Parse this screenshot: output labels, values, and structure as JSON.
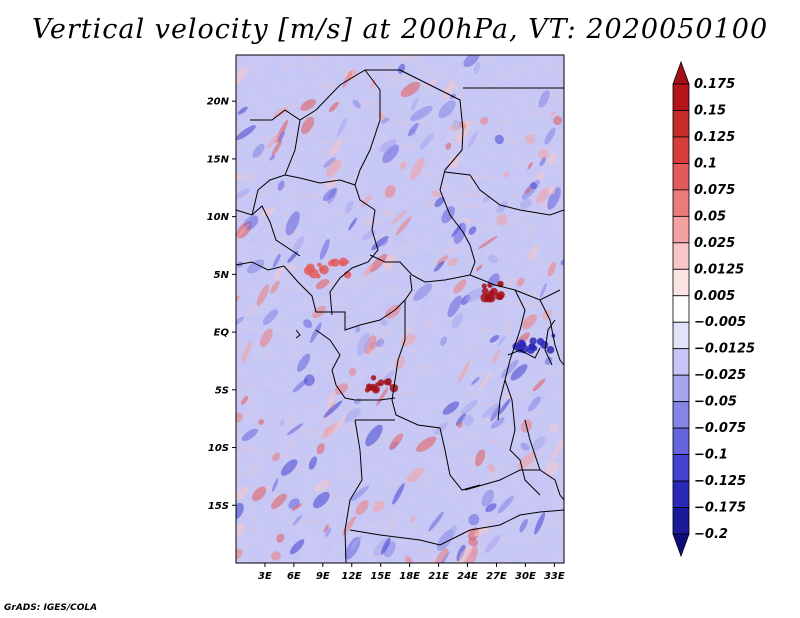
{
  "chart_data": {
    "type": "heatmap",
    "title": "Vertical velocity [m/s] at 200hPa, VT: 2020050100",
    "variable": "Vertical velocity",
    "units": "m/s",
    "level": "200hPa",
    "valid_time": "2020050100",
    "x_axis": {
      "range_deg_east": [
        0,
        34
      ],
      "ticks": [
        3,
        6,
        9,
        12,
        15,
        18,
        21,
        24,
        27,
        30,
        33
      ],
      "tick_labels": [
        "3E",
        "6E",
        "9E",
        "12E",
        "15E",
        "18E",
        "21E",
        "24E",
        "27E",
        "30E",
        "33E"
      ]
    },
    "y_axis": {
      "range_deg_north": [
        -20,
        24
      ],
      "ticks": [
        20,
        15,
        10,
        5,
        0,
        -5,
        -10,
        -15
      ],
      "tick_labels": [
        "20N",
        "15N",
        "10N",
        "5N",
        "EQ",
        "5S",
        "10S",
        "15S"
      ]
    },
    "colorbar": {
      "levels": [
        0.175,
        0.15,
        0.125,
        0.1,
        0.075,
        0.05,
        0.025,
        0.0125,
        0.005,
        -0.005,
        -0.0125,
        -0.025,
        -0.05,
        -0.075,
        -0.1,
        -0.125,
        -0.175,
        -0.2
      ],
      "labels": [
        "0.175",
        "0.15",
        "0.125",
        "0.1",
        "0.075",
        "0.05",
        "0.025",
        "0.0125",
        "0.005",
        "−0.005",
        "−0.0125",
        "−0.025",
        "−0.05",
        "−0.075",
        "−0.1",
        "−0.125",
        "−0.175",
        "−0.2"
      ],
      "colors": [
        "#a50f15",
        "#b5141b",
        "#c62a2a",
        "#d83c3c",
        "#e35a5a",
        "#ec7c7c",
        "#f4a1a1",
        "#f9c6c6",
        "#fce4e4",
        "#ffffff",
        "#e2e2fb",
        "#c6c6f6",
        "#a6a6ef",
        "#8585e6",
        "#6464dc",
        "#4343cf",
        "#2a2ab8",
        "#1a1a9a",
        "#0e0e7e"
      ],
      "extends": "both"
    },
    "features": [
      {
        "name": "strong ascent",
        "lon": 26.5,
        "lat": 3.5
      },
      {
        "name": "strong ascent",
        "lon": 15.0,
        "lat": -4.5
      },
      {
        "name": "ascent band",
        "lon": 9.5,
        "lat": 5.5
      },
      {
        "name": "subsidence",
        "lon": 31.0,
        "lat": -1.0
      }
    ]
  },
  "footer": "GrADS: IGES/COLA"
}
